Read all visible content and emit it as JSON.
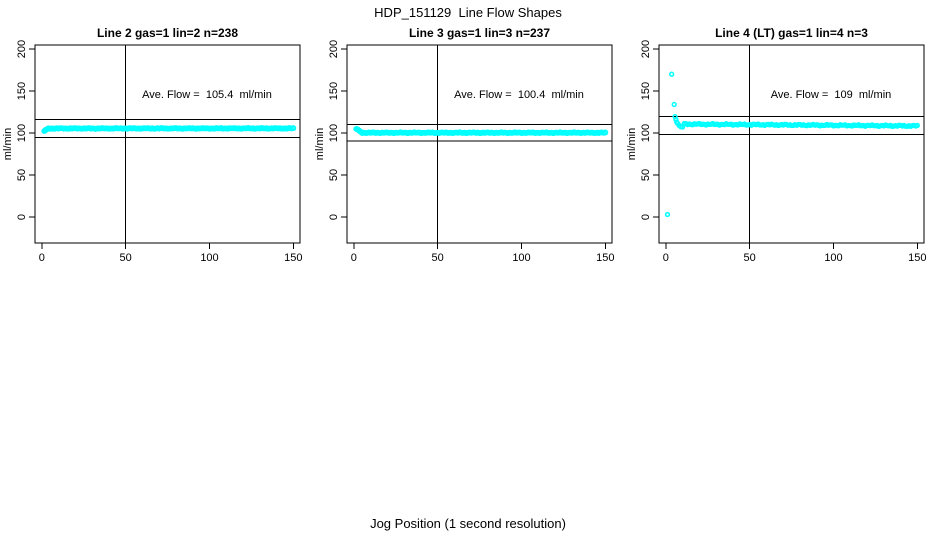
{
  "colors": {
    "marker": "#00ffff",
    "axis": "#000000",
    "background": "#ffffff",
    "text": "#000000"
  },
  "chart_data": {
    "type": "scatter",
    "title": "HDP_151129  Line Flow Shapes",
    "xlabel": "Jog Position (1 second resolution)",
    "ylabel": "ml/min",
    "legend": "none",
    "grid": false,
    "panels": [
      {
        "title": "Line 2 gas=1 lin=2 n=238",
        "annotation": "Ave. Flow =  105.4  ml/min",
        "ave_flow_ml_min": 105.4,
        "n_points": 238,
        "xlim": [
          0,
          150
        ],
        "ylim": [
          0,
          200
        ],
        "x_ticks": [
          0,
          50,
          100,
          150
        ],
        "y_ticks": [
          0,
          50,
          100,
          150,
          200
        ],
        "vline_x": 50,
        "hlines_y": [
          115.9,
          94.9
        ],
        "marker_radius": 2.2,
        "lead_in_points": [
          [
            1.5,
            102.3
          ],
          [
            2,
            103.2
          ],
          [
            2.5,
            103.9
          ],
          [
            3,
            104.5
          ],
          [
            3.5,
            104.9
          ]
        ],
        "steady_segment": {
          "x_from": 4,
          "x_to": 150,
          "x_step": 1,
          "y_start": 105.4,
          "y_end": 105.5,
          "y_jitter": 0.5
        }
      },
      {
        "title": "Line 3 gas=1 lin=3 n=237",
        "annotation": "Ave. Flow =  100.4  ml/min",
        "ave_flow_ml_min": 100.4,
        "n_points": 237,
        "xlim": [
          0,
          150
        ],
        "ylim": [
          0,
          200
        ],
        "x_ticks": [
          0,
          50,
          100,
          150
        ],
        "y_ticks": [
          0,
          50,
          100,
          150,
          200
        ],
        "vline_x": 50,
        "hlines_y": [
          110.4,
          90.4
        ],
        "marker_radius": 2.2,
        "lead_in_points": [
          [
            1.5,
            104.8
          ],
          [
            2,
            104.5
          ],
          [
            2.5,
            103.9
          ],
          [
            3,
            103.1
          ],
          [
            3.5,
            102.3
          ],
          [
            4,
            101.6
          ],
          [
            4.5,
            101.0
          ]
        ],
        "steady_segment": {
          "x_from": 5,
          "x_to": 150,
          "x_step": 1,
          "y_start": 100.3,
          "y_end": 100.3,
          "y_jitter": 0.5
        }
      },
      {
        "title": "Line 4 (LT) gas=1 lin=4 n=3",
        "annotation": "Ave. Flow =  109  ml/min",
        "ave_flow_ml_min": 109,
        "n_points": 3,
        "xlim": [
          0,
          150
        ],
        "ylim": [
          0,
          200
        ],
        "x_ticks": [
          0,
          50,
          100,
          150
        ],
        "y_ticks": [
          0,
          50,
          100,
          150,
          200
        ],
        "vline_x": 50,
        "hlines_y": [
          119.9,
          98.1
        ],
        "marker_radius": 1.9,
        "lead_in_points": [
          [
            1,
            3
          ],
          [
            3.5,
            170
          ],
          [
            5,
            134
          ],
          [
            5.5,
            119.5
          ],
          [
            6,
            116
          ],
          [
            6.5,
            113
          ],
          [
            7,
            111.5
          ],
          [
            8,
            109
          ],
          [
            9,
            107.5
          ],
          [
            10,
            107.2
          ]
        ],
        "steady_segment": {
          "x_from": 11,
          "x_to": 150,
          "x_step": 1,
          "y_start": 110.6,
          "y_end": 108.4,
          "y_jitter": 0.9
        }
      }
    ]
  }
}
